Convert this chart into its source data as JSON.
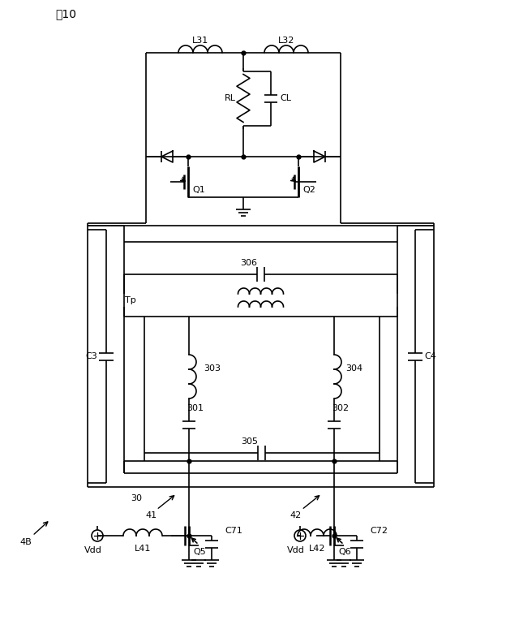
{
  "title": "図10",
  "fig_label": "4B",
  "block_label": "30",
  "bg": "#ffffff",
  "lc": "#000000"
}
